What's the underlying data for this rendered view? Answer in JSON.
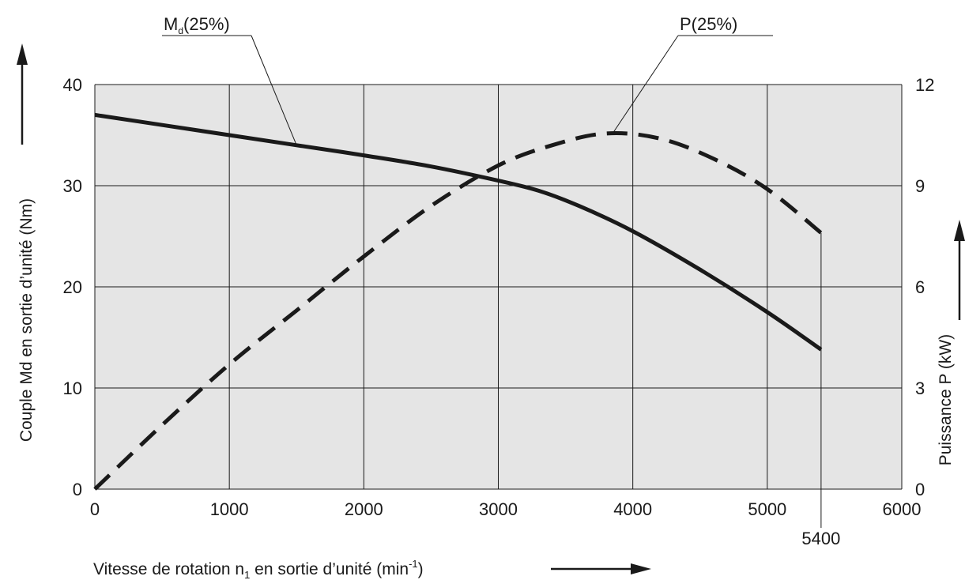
{
  "chart_data": {
    "type": "line",
    "xlabel": {
      "main": "Vitesse de rotation n",
      "sub": "1",
      "mid": " en sortie d’unité (min",
      "sup": "-1",
      "end": ")"
    },
    "ylabel_left": "Couple Md en sortie d’unité (Nm)",
    "ylabel_right": "Puissance P (kW)",
    "xlim": [
      0,
      6000
    ],
    "ylim_left": [
      0,
      40
    ],
    "ylim_right": [
      0,
      12
    ],
    "x_ticks": [
      "0",
      "1000",
      "2000",
      "3000",
      "4000",
      "5000",
      "6000"
    ],
    "y_left_ticks": [
      "0",
      "10",
      "20",
      "30",
      "40"
    ],
    "y_right_ticks": [
      "0",
      "3",
      "6",
      "9",
      "12"
    ],
    "x_extra_tick": {
      "label": "5400",
      "value": 5400
    },
    "grid": true,
    "plot_background": "#e5e5e5",
    "series": [
      {
        "name": "Md(25%)",
        "label_main": "M",
        "label_sub": "d",
        "label_rest": "(25%)",
        "axis": "left",
        "style": "solid",
        "x": [
          0,
          500,
          1000,
          1500,
          2000,
          2500,
          3000,
          3300,
          3600,
          4000,
          4500,
          5000,
          5400
        ],
        "y": [
          37.0,
          36.0,
          35.0,
          34.0,
          33.0,
          31.9,
          30.5,
          29.5,
          28.0,
          25.5,
          21.7,
          17.5,
          13.8
        ]
      },
      {
        "name": "P(25%)",
        "label_main": "P(25%)",
        "axis": "right",
        "style": "dashed",
        "x": [
          0,
          500,
          1000,
          1500,
          2000,
          2500,
          3000,
          3400,
          3800,
          4200,
          4600,
          5000,
          5400
        ],
        "y": [
          0.0,
          1.9,
          3.7,
          5.3,
          6.9,
          8.4,
          9.6,
          10.2,
          10.55,
          10.4,
          9.8,
          8.9,
          7.6
        ]
      }
    ]
  },
  "colors": {
    "line": "#1a1a1a",
    "grid": "#1a1a1a",
    "plot_bg": "#e5e5e5"
  }
}
